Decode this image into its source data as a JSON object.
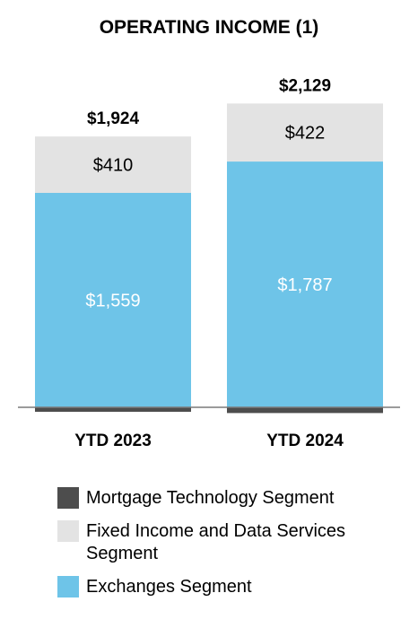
{
  "chart_data": {
    "type": "bar",
    "stacked": true,
    "title": "OPERATING INCOME (1)",
    "categories": [
      "YTD 2023",
      "YTD 2024"
    ],
    "series": [
      {
        "name": "Mortgage Technology Segment",
        "color": "#4d4d4d",
        "values": [
          -45,
          -80
        ],
        "value_labels": [
          "",
          ""
        ]
      },
      {
        "name": "Exchanges Segment",
        "color": "#6ec4e8",
        "values": [
          1559,
          1787
        ],
        "value_labels": [
          "$1,559",
          "$1,787"
        ]
      },
      {
        "name": "Fixed Income and Data Services Segment",
        "color": "#e3e3e3",
        "values": [
          410,
          422
        ],
        "value_labels": [
          "$410",
          "$422"
        ]
      }
    ],
    "totals": [
      "$1,924",
      "$2,129"
    ],
    "total_values": [
      1924,
      2129
    ],
    "ylim": [
      -80,
      2300
    ],
    "grid": false,
    "legend_position": "bottom",
    "legend": [
      {
        "label": "Mortgage Technology Segment",
        "color": "#4d4d4d"
      },
      {
        "label": "Fixed Income and Data Services Segment",
        "color": "#e3e3e3"
      },
      {
        "label": "Exchanges Segment",
        "color": "#6ec4e8"
      }
    ]
  }
}
